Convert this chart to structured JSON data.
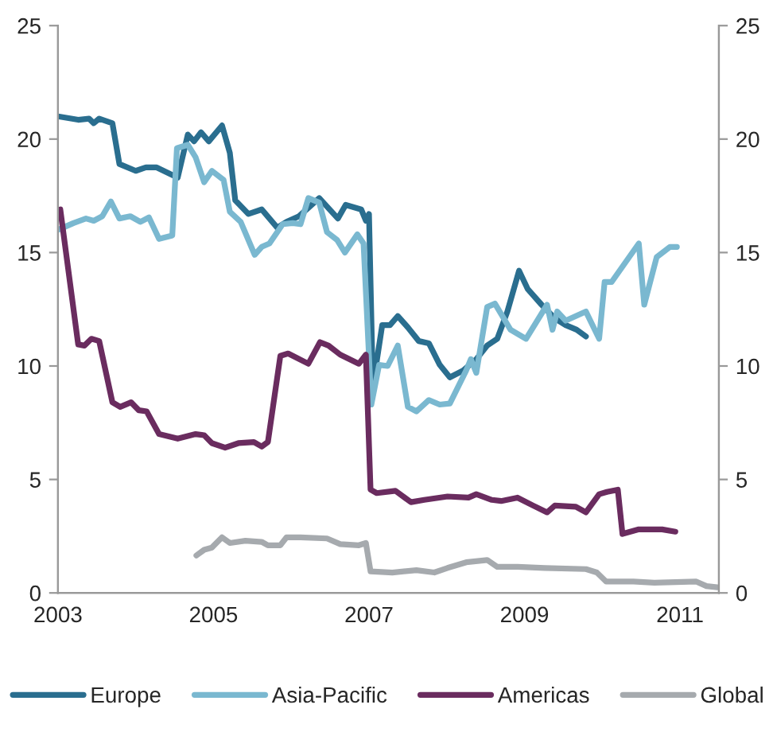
{
  "chart_data": {
    "type": "line",
    "xlim": [
      2003,
      2011.5
    ],
    "xticks": [
      {
        "value": 2003,
        "label": "2003"
      },
      {
        "value": 2005,
        "label": "2005"
      },
      {
        "value": 2007,
        "label": "2007"
      },
      {
        "value": 2009,
        "label": "2009"
      },
      {
        "value": 2011,
        "label": "2011"
      }
    ],
    "ylim": [
      0,
      25
    ],
    "yticks": [
      0,
      5,
      10,
      15,
      20,
      25
    ],
    "y2lim": [
      0,
      25
    ],
    "y2ticks": [
      0,
      5,
      10,
      15,
      20,
      25
    ],
    "grid": false,
    "legend": "bottom",
    "line_style": "solid",
    "marker": "none",
    "series": [
      {
        "name": "Europe",
        "color": "#2a6e8f",
        "x": [
          2003.0,
          2003.26,
          2003.4,
          2003.46,
          2003.53,
          2003.7,
          2003.79,
          2004.0,
          2004.13,
          2004.27,
          2004.54,
          2004.67,
          2004.75,
          2004.84,
          2004.94,
          2005.11,
          2005.21,
          2005.28,
          2005.45,
          2005.62,
          2005.82,
          2005.94,
          2006.1,
          2006.36,
          2006.6,
          2006.7,
          2006.9,
          2006.96,
          2007.0,
          2007.05,
          2007.17,
          2007.27,
          2007.37,
          2007.5,
          2007.64,
          2007.77,
          2007.91,
          2008.04,
          2008.21,
          2008.38,
          2008.52,
          2008.65,
          2008.78,
          2008.93,
          2009.04,
          2009.22,
          2009.39,
          2009.53,
          2009.67,
          2009.79
        ],
        "values": [
          21.0,
          20.85,
          20.9,
          20.7,
          20.9,
          20.7,
          18.9,
          18.6,
          18.75,
          18.75,
          18.3,
          20.2,
          19.9,
          20.3,
          19.9,
          20.6,
          19.4,
          17.3,
          16.7,
          16.9,
          16.1,
          16.35,
          16.6,
          17.4,
          16.5,
          17.1,
          16.9,
          16.4,
          16.7,
          9.1,
          11.8,
          11.8,
          12.2,
          11.7,
          11.1,
          11.0,
          10.05,
          9.5,
          9.8,
          10.3,
          10.9,
          11.2,
          12.4,
          14.2,
          13.4,
          12.7,
          12.1,
          11.8,
          11.6,
          11.3
        ]
      },
      {
        "name": "Asia-Pacific",
        "color": "#7ab8d0",
        "x": [
          2003.0,
          2003.2,
          2003.36,
          2003.46,
          2003.57,
          2003.68,
          2003.79,
          2003.93,
          2004.06,
          2004.17,
          2004.3,
          2004.47,
          2004.53,
          2004.67,
          2004.77,
          2004.88,
          2004.98,
          2005.13,
          2005.21,
          2005.35,
          2005.53,
          2005.62,
          2005.72,
          2005.89,
          2006.02,
          2006.12,
          2006.22,
          2006.36,
          2006.46,
          2006.59,
          2006.69,
          2006.85,
          2006.93,
          2007.03,
          2007.13,
          2007.24,
          2007.37,
          2007.5,
          2007.61,
          2007.77,
          2007.91,
          2008.04,
          2008.25,
          2008.31,
          2008.38,
          2008.52,
          2008.62,
          2008.82,
          2009.02,
          2009.29,
          2009.36,
          2009.42,
          2009.53,
          2009.79,
          2009.96,
          2010.03,
          2010.12,
          2010.47,
          2010.54,
          2010.7,
          2010.87,
          2010.96
        ],
        "values": [
          16.0,
          16.3,
          16.5,
          16.4,
          16.6,
          17.25,
          16.5,
          16.6,
          16.35,
          16.55,
          15.6,
          15.75,
          19.6,
          19.75,
          19.2,
          18.1,
          18.6,
          18.2,
          16.8,
          16.35,
          14.9,
          15.25,
          15.4,
          16.25,
          16.3,
          16.25,
          17.4,
          17.2,
          15.9,
          15.55,
          15.0,
          15.8,
          15.4,
          8.3,
          10.05,
          10.0,
          10.9,
          8.2,
          8.0,
          8.5,
          8.3,
          8.35,
          9.8,
          10.3,
          9.7,
          12.6,
          12.75,
          11.6,
          11.2,
          12.7,
          11.6,
          12.4,
          12.0,
          12.4,
          11.2,
          13.7,
          13.7,
          15.4,
          12.7,
          14.8,
          15.25,
          15.25
        ]
      },
      {
        "name": "Americas",
        "color": "#6a2c5f",
        "x": [
          2003.03,
          2003.26,
          2003.34,
          2003.43,
          2003.53,
          2003.7,
          2003.8,
          2003.94,
          2004.04,
          2004.14,
          2004.3,
          2004.54,
          2004.77,
          2004.88,
          2004.98,
          2005.15,
          2005.32,
          2005.52,
          2005.62,
          2005.7,
          2005.86,
          2005.96,
          2006.22,
          2006.37,
          2006.48,
          2006.63,
          2006.87,
          2006.96,
          2007.02,
          2007.1,
          2007.34,
          2007.54,
          2007.71,
          2008.01,
          2008.28,
          2008.38,
          2008.58,
          2008.7,
          2008.91,
          2009.11,
          2009.29,
          2009.39,
          2009.66,
          2009.79,
          2009.96,
          2010.06,
          2010.2,
          2010.26,
          2010.47,
          2010.77,
          2010.94
        ],
        "values": [
          16.9,
          10.95,
          10.9,
          11.2,
          11.1,
          8.4,
          8.2,
          8.4,
          8.05,
          8.0,
          7.0,
          6.8,
          7.0,
          6.95,
          6.6,
          6.4,
          6.6,
          6.65,
          6.45,
          6.65,
          10.45,
          10.55,
          10.1,
          11.05,
          10.9,
          10.5,
          10.1,
          10.5,
          4.55,
          4.4,
          4.5,
          4.0,
          4.1,
          4.25,
          4.2,
          4.35,
          4.1,
          4.05,
          4.2,
          3.85,
          3.55,
          3.85,
          3.8,
          3.55,
          4.35,
          4.45,
          4.55,
          2.6,
          2.8,
          2.8,
          2.7
        ]
      },
      {
        "name": "Global",
        "color": "#a6aaae",
        "x": [
          2004.78,
          2004.88,
          2004.98,
          2005.11,
          2005.21,
          2005.41,
          2005.62,
          2005.7,
          2005.86,
          2005.94,
          2006.12,
          2006.46,
          2006.63,
          2006.87,
          2006.96,
          2007.02,
          2007.3,
          2007.61,
          2007.84,
          2008.01,
          2008.25,
          2008.52,
          2008.65,
          2008.91,
          2009.26,
          2009.79,
          2009.93,
          2010.05,
          2010.4,
          2010.67,
          2011.21,
          2011.34,
          2011.48
        ],
        "values": [
          1.65,
          1.9,
          2.0,
          2.45,
          2.2,
          2.3,
          2.25,
          2.1,
          2.1,
          2.45,
          2.45,
          2.4,
          2.15,
          2.1,
          2.2,
          0.95,
          0.9,
          1.0,
          0.9,
          1.1,
          1.35,
          1.45,
          1.15,
          1.15,
          1.1,
          1.05,
          0.9,
          0.5,
          0.5,
          0.45,
          0.5,
          0.3,
          0.25
        ]
      }
    ]
  }
}
